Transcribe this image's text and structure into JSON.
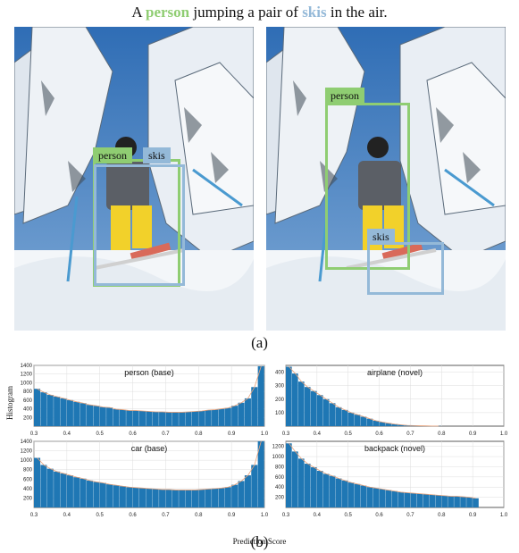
{
  "caption": {
    "prefix": "A ",
    "word1": "person",
    "middle": " jumping a pair of ",
    "word2": "skis",
    "suffix": " in the air."
  },
  "colors": {
    "person": "#8fcd72",
    "skis": "#94b9d8",
    "bar": "#1f77b4"
  },
  "left_panel": {
    "labels": [
      "person",
      "skis"
    ]
  },
  "right_panel": {
    "labels": [
      "person",
      "skis"
    ]
  },
  "label_a": "(a)",
  "label_b": "(b)",
  "ylabel": "Histogram",
  "xlabel": "Prediction Score",
  "chart_data": [
    {
      "type": "bar",
      "title": "person (base)",
      "xlim": [
        0.3,
        1.0
      ],
      "ylim": [
        0,
        1400
      ],
      "xticks": [
        "0.3",
        "0.4",
        "0.5",
        "0.6",
        "0.7",
        "0.8",
        "0.9",
        "1.0"
      ],
      "yticks": [
        "200",
        "400",
        "600",
        "800",
        "1000",
        "1200",
        "1400"
      ],
      "values": [
        860,
        780,
        720,
        680,
        640,
        600,
        560,
        530,
        490,
        470,
        440,
        430,
        390,
        380,
        360,
        360,
        350,
        340,
        330,
        330,
        320,
        320,
        320,
        330,
        340,
        350,
        370,
        380,
        400,
        420,
        470,
        540,
        640,
        900,
        1380
      ]
    },
    {
      "type": "bar",
      "title": "airplane (novel)",
      "xlim": [
        0.3,
        1.0
      ],
      "ylim": [
        0,
        450
      ],
      "xticks": [
        "0.3",
        "0.4",
        "0.5",
        "0.6",
        "0.7",
        "0.8",
        "0.9",
        "1.0"
      ],
      "yticks": [
        "100",
        "200",
        "300",
        "400"
      ],
      "values": [
        440,
        390,
        330,
        290,
        260,
        230,
        200,
        170,
        140,
        120,
        100,
        85,
        70,
        55,
        40,
        30,
        22,
        15,
        10,
        6,
        4,
        3,
        2,
        1,
        1,
        0,
        0,
        0,
        0,
        0,
        0,
        0,
        0,
        0,
        0
      ]
    },
    {
      "type": "bar",
      "title": "car (base)",
      "xlim": [
        0.3,
        1.0
      ],
      "ylim": [
        0,
        1400
      ],
      "xticks": [
        "0.3",
        "0.4",
        "0.5",
        "0.6",
        "0.7",
        "0.8",
        "0.9",
        "1.0"
      ],
      "yticks": [
        "200",
        "400",
        "600",
        "800",
        "1000",
        "1200",
        "1400"
      ],
      "values": [
        1050,
        900,
        820,
        760,
        720,
        680,
        640,
        610,
        570,
        540,
        520,
        490,
        470,
        450,
        430,
        420,
        410,
        400,
        390,
        380,
        380,
        370,
        370,
        370,
        370,
        380,
        390,
        400,
        410,
        430,
        480,
        560,
        680,
        900,
        1400
      ]
    },
    {
      "type": "bar",
      "title": "backpack (novel)",
      "xlim": [
        0.3,
        1.0
      ],
      "ylim": [
        0,
        1300
      ],
      "xticks": [
        "0.3",
        "0.4",
        "0.5",
        "0.6",
        "0.7",
        "0.8",
        "0.9",
        "1.0"
      ],
      "yticks": [
        "200",
        "400",
        "600",
        "800",
        "1000",
        "1200"
      ],
      "values": [
        1260,
        1100,
        960,
        860,
        790,
        720,
        660,
        620,
        570,
        530,
        490,
        460,
        430,
        400,
        380,
        360,
        340,
        320,
        300,
        290,
        280,
        270,
        260,
        250,
        240,
        230,
        220,
        220,
        210,
        200,
        180,
        0,
        0,
        0,
        0
      ]
    }
  ]
}
